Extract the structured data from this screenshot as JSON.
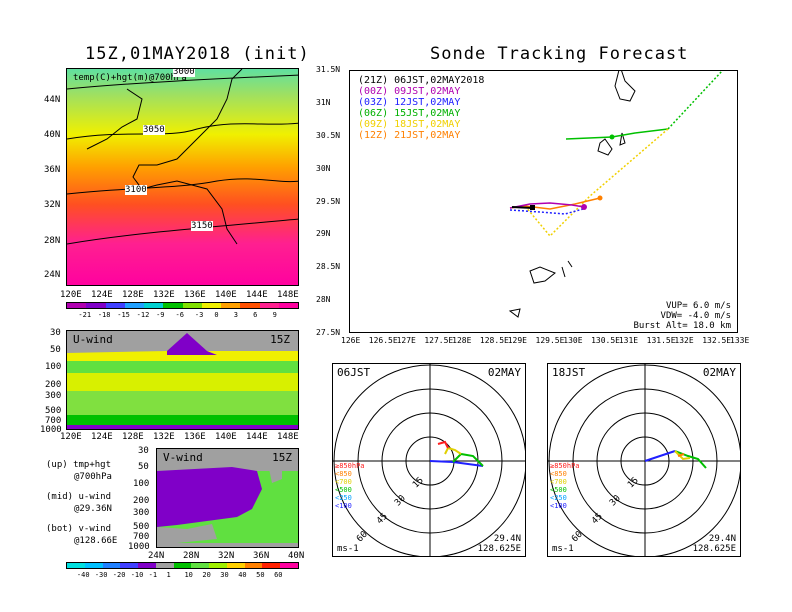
{
  "top_left": {
    "title": "15Z,01MAY2018 (init)",
    "panel_label": "temp(C)+hgt(m)@700hPa",
    "contours": [
      "3000",
      "3050",
      "3100",
      "3150"
    ],
    "lat_ticks": [
      "44N",
      "40N",
      "36N",
      "32N",
      "28N",
      "24N"
    ],
    "lon_ticks": [
      "120E",
      "124E",
      "128E",
      "132E",
      "136E",
      "140E",
      "144E",
      "148E"
    ],
    "colorbar": [
      "-21",
      "-18",
      "-15",
      "-12",
      "-9",
      "-6",
      "-3",
      "0",
      "3",
      "6",
      "9"
    ],
    "colorbar_colors": [
      "#b000b0",
      "#8000c8",
      "#4040ff",
      "#20a0ff",
      "#00d0d0",
      "#00c000",
      "#80e000",
      "#f0f000",
      "#ffa000",
      "#ff5000",
      "#ff2090",
      "#ff00a0"
    ]
  },
  "u_wind": {
    "label": "U-wind",
    "time": "15Z",
    "p_ticks": [
      "30",
      "50",
      "100",
      "200",
      "300",
      "500",
      "700",
      "1000"
    ],
    "lon_ticks": [
      "120E",
      "124E",
      "128E",
      "132E",
      "136E",
      "140E",
      "144E",
      "148E"
    ]
  },
  "v_wind": {
    "label": "V-wind",
    "time": "15Z",
    "p_ticks": [
      "30",
      "50",
      "100",
      "200",
      "300",
      "500",
      "700",
      "1000"
    ],
    "lat_ticks": [
      "24N",
      "28N",
      "32N",
      "36N",
      "40N"
    ],
    "colorbar": [
      "-40",
      "-30",
      "-20",
      "-10",
      "-1",
      "1",
      "10",
      "20",
      "30",
      "40",
      "50",
      "60"
    ],
    "colorbar_colors": [
      "#00e0e0",
      "#00c0ff",
      "#2080ff",
      "#4040ff",
      "#8000c8",
      "#a0a0a0",
      "#00c000",
      "#60e040",
      "#a0f000",
      "#ffd000",
      "#ff8000",
      "#ff2000",
      "#ff00a0"
    ]
  },
  "legend_notes": [
    {
      "a": "(up) tmp+hgt",
      "b": "@700hPa"
    },
    {
      "a": "(mid) u-wind",
      "b": "@29.36N"
    },
    {
      "a": "(bot) v-wind",
      "b": "@128.66E"
    }
  ],
  "track": {
    "title": "Sonde Tracking Forecast",
    "launches": [
      {
        "label": "(21Z)  06JST,02MAY2018",
        "color": "#000000"
      },
      {
        "label": "(00Z)  09JST,02MAY",
        "color": "#b000b0"
      },
      {
        "label": "(03Z)  12JST,02MAY",
        "color": "#2020ff"
      },
      {
        "label": "(06Z)  15JST,02MAY",
        "color": "#00b000"
      },
      {
        "label": "(09Z)  18JST,02MAY",
        "color": "#f0d000"
      },
      {
        "label": "(12Z)  21JST,02MAY",
        "color": "#ff8000"
      }
    ],
    "lat_ticks": [
      "31.5N",
      "31N",
      "30.5N",
      "30N",
      "29.5N",
      "29N",
      "28.5N",
      "28N",
      "27.5N"
    ],
    "lon_ticks": [
      "126E",
      "126.5E",
      "127E",
      "127.5E",
      "128E",
      "128.5E",
      "129E",
      "129.5E",
      "130E",
      "130.5E",
      "131E",
      "131.5E",
      "132E",
      "132.5E",
      "133E"
    ],
    "vup": "VUP= 6.0 m/s",
    "vdw": "VDW= -4.0 m/s",
    "burst": "Burst Alt= 18.0 km"
  },
  "polar_left": {
    "time": "06JST",
    "date": "02MAY",
    "ring_labels": [
      "15",
      "30",
      "45",
      "60"
    ],
    "levels": [
      "≥850hPa",
      "<850",
      "<700",
      "<500",
      "<250",
      "<100"
    ],
    "level_colors": [
      "#ff2020",
      "#ff8000",
      "#e0d000",
      "#00c000",
      "#00a0ff",
      "#2020ff"
    ],
    "units": "ms-1",
    "lat": "29.4N",
    "lon": "128.625E"
  },
  "polar_right": {
    "time": "18JST",
    "date": "02MAY",
    "ring_labels": [
      "15",
      "30",
      "45",
      "60"
    ],
    "levels": [
      "≥850hPa",
      "<850",
      "<700",
      "<500",
      "<250",
      "<100"
    ],
    "level_colors": [
      "#ff2020",
      "#ff8000",
      "#e0d000",
      "#00c000",
      "#00a0ff",
      "#2020ff"
    ],
    "units": "ms-1",
    "lat": "29.4N",
    "lon": "128.625E"
  }
}
